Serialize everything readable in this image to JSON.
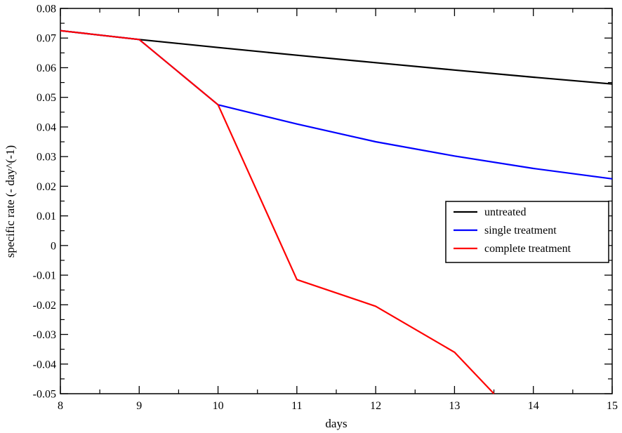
{
  "chart_data": {
    "type": "line",
    "title": "",
    "xlabel": "days",
    "ylabel": "specific rate (- day^(-1)",
    "xlim": [
      8,
      15
    ],
    "ylim": [
      -0.05,
      0.08
    ],
    "grid": false,
    "legend_position": "right",
    "x_ticks": [
      "8",
      "9",
      "10",
      "11",
      "12",
      "13",
      "14",
      "15"
    ],
    "y_ticks": [
      "0.08",
      "0.07",
      "0.06",
      "0.05",
      "0.04",
      "0.03",
      "0.02",
      "0.01",
      "0",
      "-0.01",
      "-0.02",
      "-0.03",
      "-0.04",
      "-0.05"
    ],
    "x_tick_values": [
      8,
      9,
      10,
      11,
      12,
      13,
      14,
      15
    ],
    "y_tick_values": [
      0.08,
      0.07,
      0.06,
      0.05,
      0.04,
      0.03,
      0.02,
      0.01,
      0,
      -0.01,
      -0.02,
      -0.03,
      -0.04,
      -0.05
    ],
    "series": [
      {
        "name": "untreated",
        "color": "#000000",
        "x": [
          8,
          9,
          10,
          11,
          12,
          13,
          14,
          15
        ],
        "y": [
          0.0725,
          0.0695,
          0.0668,
          0.0642,
          0.0617,
          0.0592,
          0.0568,
          0.0545
        ]
      },
      {
        "name": "single treatment",
        "color": "#0000ff",
        "x": [
          8,
          9,
          10,
          11,
          12,
          13,
          14,
          15
        ],
        "y": [
          0.0725,
          0.0695,
          0.0475,
          0.041,
          0.035,
          0.0302,
          0.026,
          0.0225
        ]
      },
      {
        "name": "complete treatment",
        "color": "#ff0000",
        "x": [
          8,
          9,
          10,
          11,
          12,
          13,
          13.5
        ],
        "y": [
          0.0725,
          0.0695,
          0.0475,
          -0.0115,
          -0.0205,
          -0.036,
          -0.05
        ]
      }
    ]
  }
}
